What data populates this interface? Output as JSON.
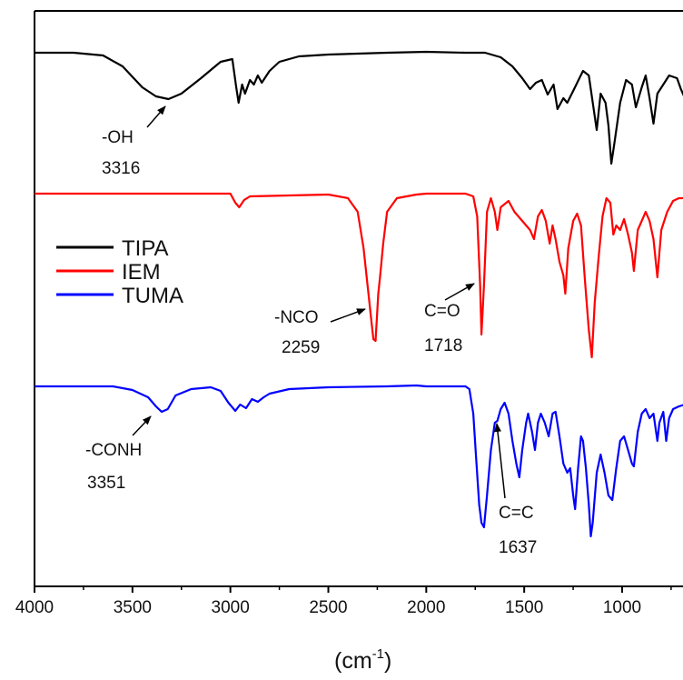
{
  "chart_data": {
    "type": "line",
    "title": "",
    "xlabel": "(cm",
    "xlabel_sup": "-1",
    "xlabel_close": ")",
    "ylabel": "",
    "xlim": [
      4000,
      680
    ],
    "x_reversed": true,
    "x_ticks": [
      4000,
      3500,
      3000,
      2500,
      2000,
      1500,
      1000
    ],
    "grid": false,
    "legend_position": "middle-left",
    "legend": [
      {
        "name": "TIPA",
        "color": "#000000"
      },
      {
        "name": "IEM",
        "color": "#ff0000"
      },
      {
        "name": "TUMA",
        "color": "#0000ff"
      }
    ],
    "series": [
      {
        "name": "TIPA",
        "color": "#000000",
        "transmittance": [
          [
            4000,
            0
          ],
          [
            3800,
            0
          ],
          [
            3650,
            -3
          ],
          [
            3550,
            -15
          ],
          [
            3450,
            -38
          ],
          [
            3380,
            -48
          ],
          [
            3316,
            -51
          ],
          [
            3250,
            -45
          ],
          [
            3150,
            -28
          ],
          [
            3050,
            -10
          ],
          [
            2990,
            -7
          ],
          [
            2970,
            -38
          ],
          [
            2958,
            -55
          ],
          [
            2940,
            -35
          ],
          [
            2925,
            -45
          ],
          [
            2900,
            -30
          ],
          [
            2880,
            -35
          ],
          [
            2860,
            -25
          ],
          [
            2840,
            -33
          ],
          [
            2800,
            -20
          ],
          [
            2750,
            -10
          ],
          [
            2650,
            -4
          ],
          [
            2500,
            -2
          ],
          [
            2200,
            0
          ],
          [
            2000,
            1
          ],
          [
            1800,
            0
          ],
          [
            1700,
            0
          ],
          [
            1620,
            -5
          ],
          [
            1560,
            -15
          ],
          [
            1510,
            -28
          ],
          [
            1470,
            -40
          ],
          [
            1440,
            -33
          ],
          [
            1410,
            -30
          ],
          [
            1380,
            -46
          ],
          [
            1350,
            -35
          ],
          [
            1330,
            -62
          ],
          [
            1300,
            -50
          ],
          [
            1280,
            -55
          ],
          [
            1250,
            -42
          ],
          [
            1200,
            -20
          ],
          [
            1170,
            -25
          ],
          [
            1130,
            -85
          ],
          [
            1110,
            -45
          ],
          [
            1085,
            -55
          ],
          [
            1070,
            -80
          ],
          [
            1055,
            -122
          ],
          [
            1040,
            -100
          ],
          [
            1010,
            -55
          ],
          [
            980,
            -30
          ],
          [
            950,
            -35
          ],
          [
            930,
            -60
          ],
          [
            900,
            -38
          ],
          [
            880,
            -25
          ],
          [
            860,
            -50
          ],
          [
            840,
            -78
          ],
          [
            820,
            -45
          ],
          [
            790,
            -35
          ],
          [
            760,
            -25
          ],
          [
            720,
            -28
          ],
          [
            700,
            -40
          ],
          [
            680,
            -50
          ]
        ]
      },
      {
        "name": "IEM",
        "color": "#ff0000",
        "transmittance": [
          [
            4000,
            0
          ],
          [
            3500,
            0
          ],
          [
            3000,
            0
          ],
          [
            2975,
            -10
          ],
          [
            2955,
            -15
          ],
          [
            2930,
            -7
          ],
          [
            2900,
            -3
          ],
          [
            2700,
            -2
          ],
          [
            2500,
            -1
          ],
          [
            2400,
            -5
          ],
          [
            2350,
            -20
          ],
          [
            2320,
            -60
          ],
          [
            2300,
            -100
          ],
          [
            2280,
            -140
          ],
          [
            2270,
            -160
          ],
          [
            2259,
            -162
          ],
          [
            2245,
            -110
          ],
          [
            2235,
            -90
          ],
          [
            2220,
            -55
          ],
          [
            2200,
            -20
          ],
          [
            2150,
            -5
          ],
          [
            2050,
            -1
          ],
          [
            2000,
            0
          ],
          [
            1800,
            0
          ],
          [
            1760,
            -3
          ],
          [
            1740,
            -25
          ],
          [
            1725,
            -100
          ],
          [
            1718,
            -155
          ],
          [
            1705,
            -100
          ],
          [
            1690,
            -20
          ],
          [
            1670,
            -5
          ],
          [
            1650,
            -20
          ],
          [
            1637,
            -40
          ],
          [
            1620,
            -15
          ],
          [
            1580,
            -8
          ],
          [
            1550,
            -20
          ],
          [
            1510,
            -30
          ],
          [
            1470,
            -40
          ],
          [
            1450,
            -50
          ],
          [
            1430,
            -25
          ],
          [
            1410,
            -18
          ],
          [
            1390,
            -30
          ],
          [
            1370,
            -55
          ],
          [
            1355,
            -35
          ],
          [
            1340,
            -50
          ],
          [
            1320,
            -75
          ],
          [
            1300,
            -90
          ],
          [
            1290,
            -110
          ],
          [
            1275,
            -60
          ],
          [
            1250,
            -30
          ],
          [
            1230,
            -22
          ],
          [
            1210,
            -35
          ],
          [
            1190,
            -95
          ],
          [
            1170,
            -150
          ],
          [
            1155,
            -180
          ],
          [
            1140,
            -120
          ],
          [
            1120,
            -70
          ],
          [
            1100,
            -25
          ],
          [
            1080,
            -5
          ],
          [
            1060,
            -10
          ],
          [
            1045,
            -45
          ],
          [
            1030,
            -35
          ],
          [
            1010,
            -40
          ],
          [
            990,
            -28
          ],
          [
            970,
            -45
          ],
          [
            950,
            -65
          ],
          [
            940,
            -85
          ],
          [
            920,
            -40
          ],
          [
            900,
            -30
          ],
          [
            880,
            -20
          ],
          [
            860,
            -30
          ],
          [
            840,
            -50
          ],
          [
            820,
            -92
          ],
          [
            800,
            -40
          ],
          [
            770,
            -20
          ],
          [
            740,
            -8
          ],
          [
            710,
            -5
          ],
          [
            680,
            -5
          ]
        ]
      },
      {
        "name": "TUMA",
        "color": "#0000ff",
        "transmittance": [
          [
            4000,
            0
          ],
          [
            3800,
            0
          ],
          [
            3600,
            0
          ],
          [
            3500,
            -4
          ],
          [
            3420,
            -12
          ],
          [
            3380,
            -22
          ],
          [
            3351,
            -28
          ],
          [
            3320,
            -25
          ],
          [
            3280,
            -10
          ],
          [
            3200,
            -3
          ],
          [
            3100,
            -1
          ],
          [
            3050,
            -5
          ],
          [
            3010,
            -18
          ],
          [
            2975,
            -27
          ],
          [
            2950,
            -20
          ],
          [
            2920,
            -24
          ],
          [
            2890,
            -14
          ],
          [
            2860,
            -17
          ],
          [
            2830,
            -12
          ],
          [
            2800,
            -8
          ],
          [
            2700,
            -3
          ],
          [
            2500,
            -1
          ],
          [
            2200,
            0
          ],
          [
            2050,
            1
          ],
          [
            2000,
            0
          ],
          [
            1800,
            0
          ],
          [
            1780,
            -3
          ],
          [
            1760,
            -30
          ],
          [
            1745,
            -80
          ],
          [
            1730,
            -130
          ],
          [
            1718,
            -150
          ],
          [
            1705,
            -155
          ],
          [
            1690,
            -120
          ],
          [
            1670,
            -70
          ],
          [
            1650,
            -40
          ],
          [
            1637,
            -38
          ],
          [
            1620,
            -25
          ],
          [
            1600,
            -18
          ],
          [
            1580,
            -30
          ],
          [
            1560,
            -60
          ],
          [
            1540,
            -85
          ],
          [
            1525,
            -100
          ],
          [
            1510,
            -70
          ],
          [
            1490,
            -40
          ],
          [
            1480,
            -30
          ],
          [
            1460,
            -50
          ],
          [
            1445,
            -70
          ],
          [
            1430,
            -40
          ],
          [
            1415,
            -30
          ],
          [
            1395,
            -40
          ],
          [
            1375,
            -55
          ],
          [
            1355,
            -30
          ],
          [
            1340,
            -28
          ],
          [
            1320,
            -55
          ],
          [
            1300,
            -85
          ],
          [
            1280,
            -95
          ],
          [
            1265,
            -90
          ],
          [
            1250,
            -120
          ],
          [
            1240,
            -135
          ],
          [
            1225,
            -90
          ],
          [
            1210,
            -55
          ],
          [
            1200,
            -60
          ],
          [
            1185,
            -90
          ],
          [
            1170,
            -130
          ],
          [
            1160,
            -165
          ],
          [
            1150,
            -150
          ],
          [
            1130,
            -95
          ],
          [
            1110,
            -75
          ],
          [
            1090,
            -95
          ],
          [
            1070,
            -120
          ],
          [
            1050,
            -125
          ],
          [
            1030,
            -90
          ],
          [
            1010,
            -60
          ],
          [
            990,
            -55
          ],
          [
            970,
            -70
          ],
          [
            950,
            -85
          ],
          [
            940,
            -88
          ],
          [
            920,
            -50
          ],
          [
            900,
            -30
          ],
          [
            880,
            -25
          ],
          [
            860,
            -35
          ],
          [
            840,
            -30
          ],
          [
            820,
            -60
          ],
          [
            810,
            -40
          ],
          [
            790,
            -28
          ],
          [
            775,
            -60
          ],
          [
            760,
            -35
          ],
          [
            740,
            -25
          ],
          [
            710,
            -22
          ],
          [
            680,
            -20
          ]
        ]
      }
    ],
    "annotations": [
      {
        "label": "-OH",
        "value": "3316"
      },
      {
        "label": "-NCO",
        "value": "2259"
      },
      {
        "label": "C=O",
        "value": "1718"
      },
      {
        "label": "-CONH",
        "value": "3351"
      },
      {
        "label": "C=C",
        "value": "1637"
      }
    ]
  }
}
